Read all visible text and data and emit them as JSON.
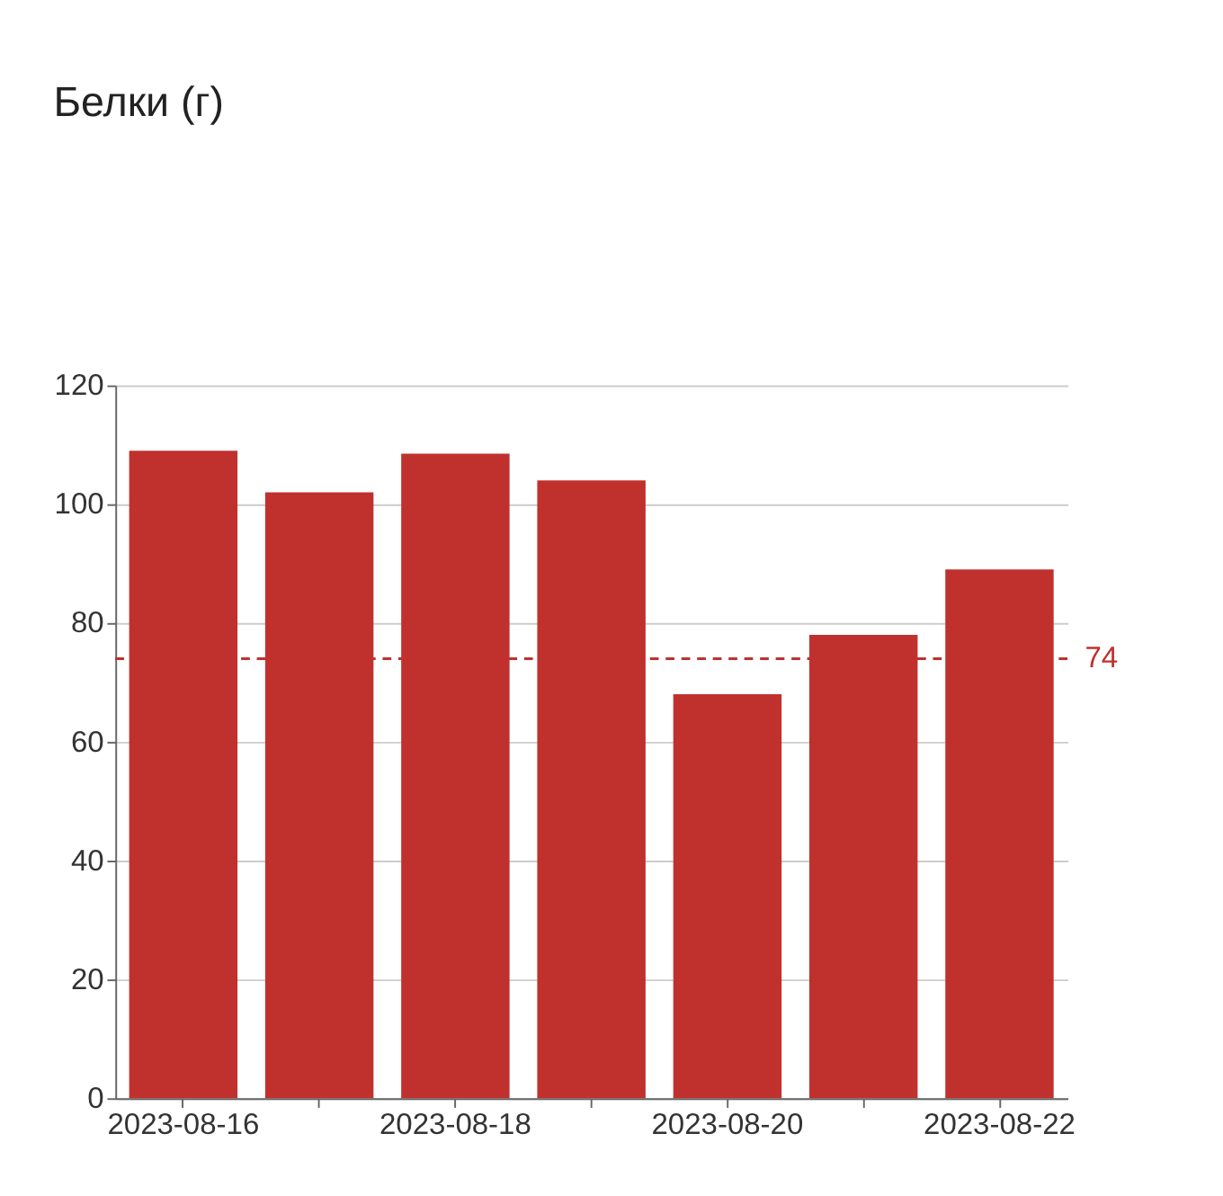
{
  "chart_data": {
    "type": "bar",
    "title": "Белки (г)",
    "categories": [
      "2023-08-16",
      null,
      "2023-08-18",
      null,
      "2023-08-20",
      null,
      "2023-08-22"
    ],
    "values": [
      109,
      102,
      108.5,
      104,
      68,
      78,
      89
    ],
    "color": "#c0312e",
    "ylim": [
      0,
      120
    ],
    "yticks": [
      0,
      20,
      40,
      60,
      80,
      100,
      120
    ],
    "grid": "y",
    "ref_lines": [
      {
        "axis": "y",
        "value": 74,
        "label": "74",
        "color": "#c0312e",
        "line_style": "dashed"
      }
    ]
  }
}
